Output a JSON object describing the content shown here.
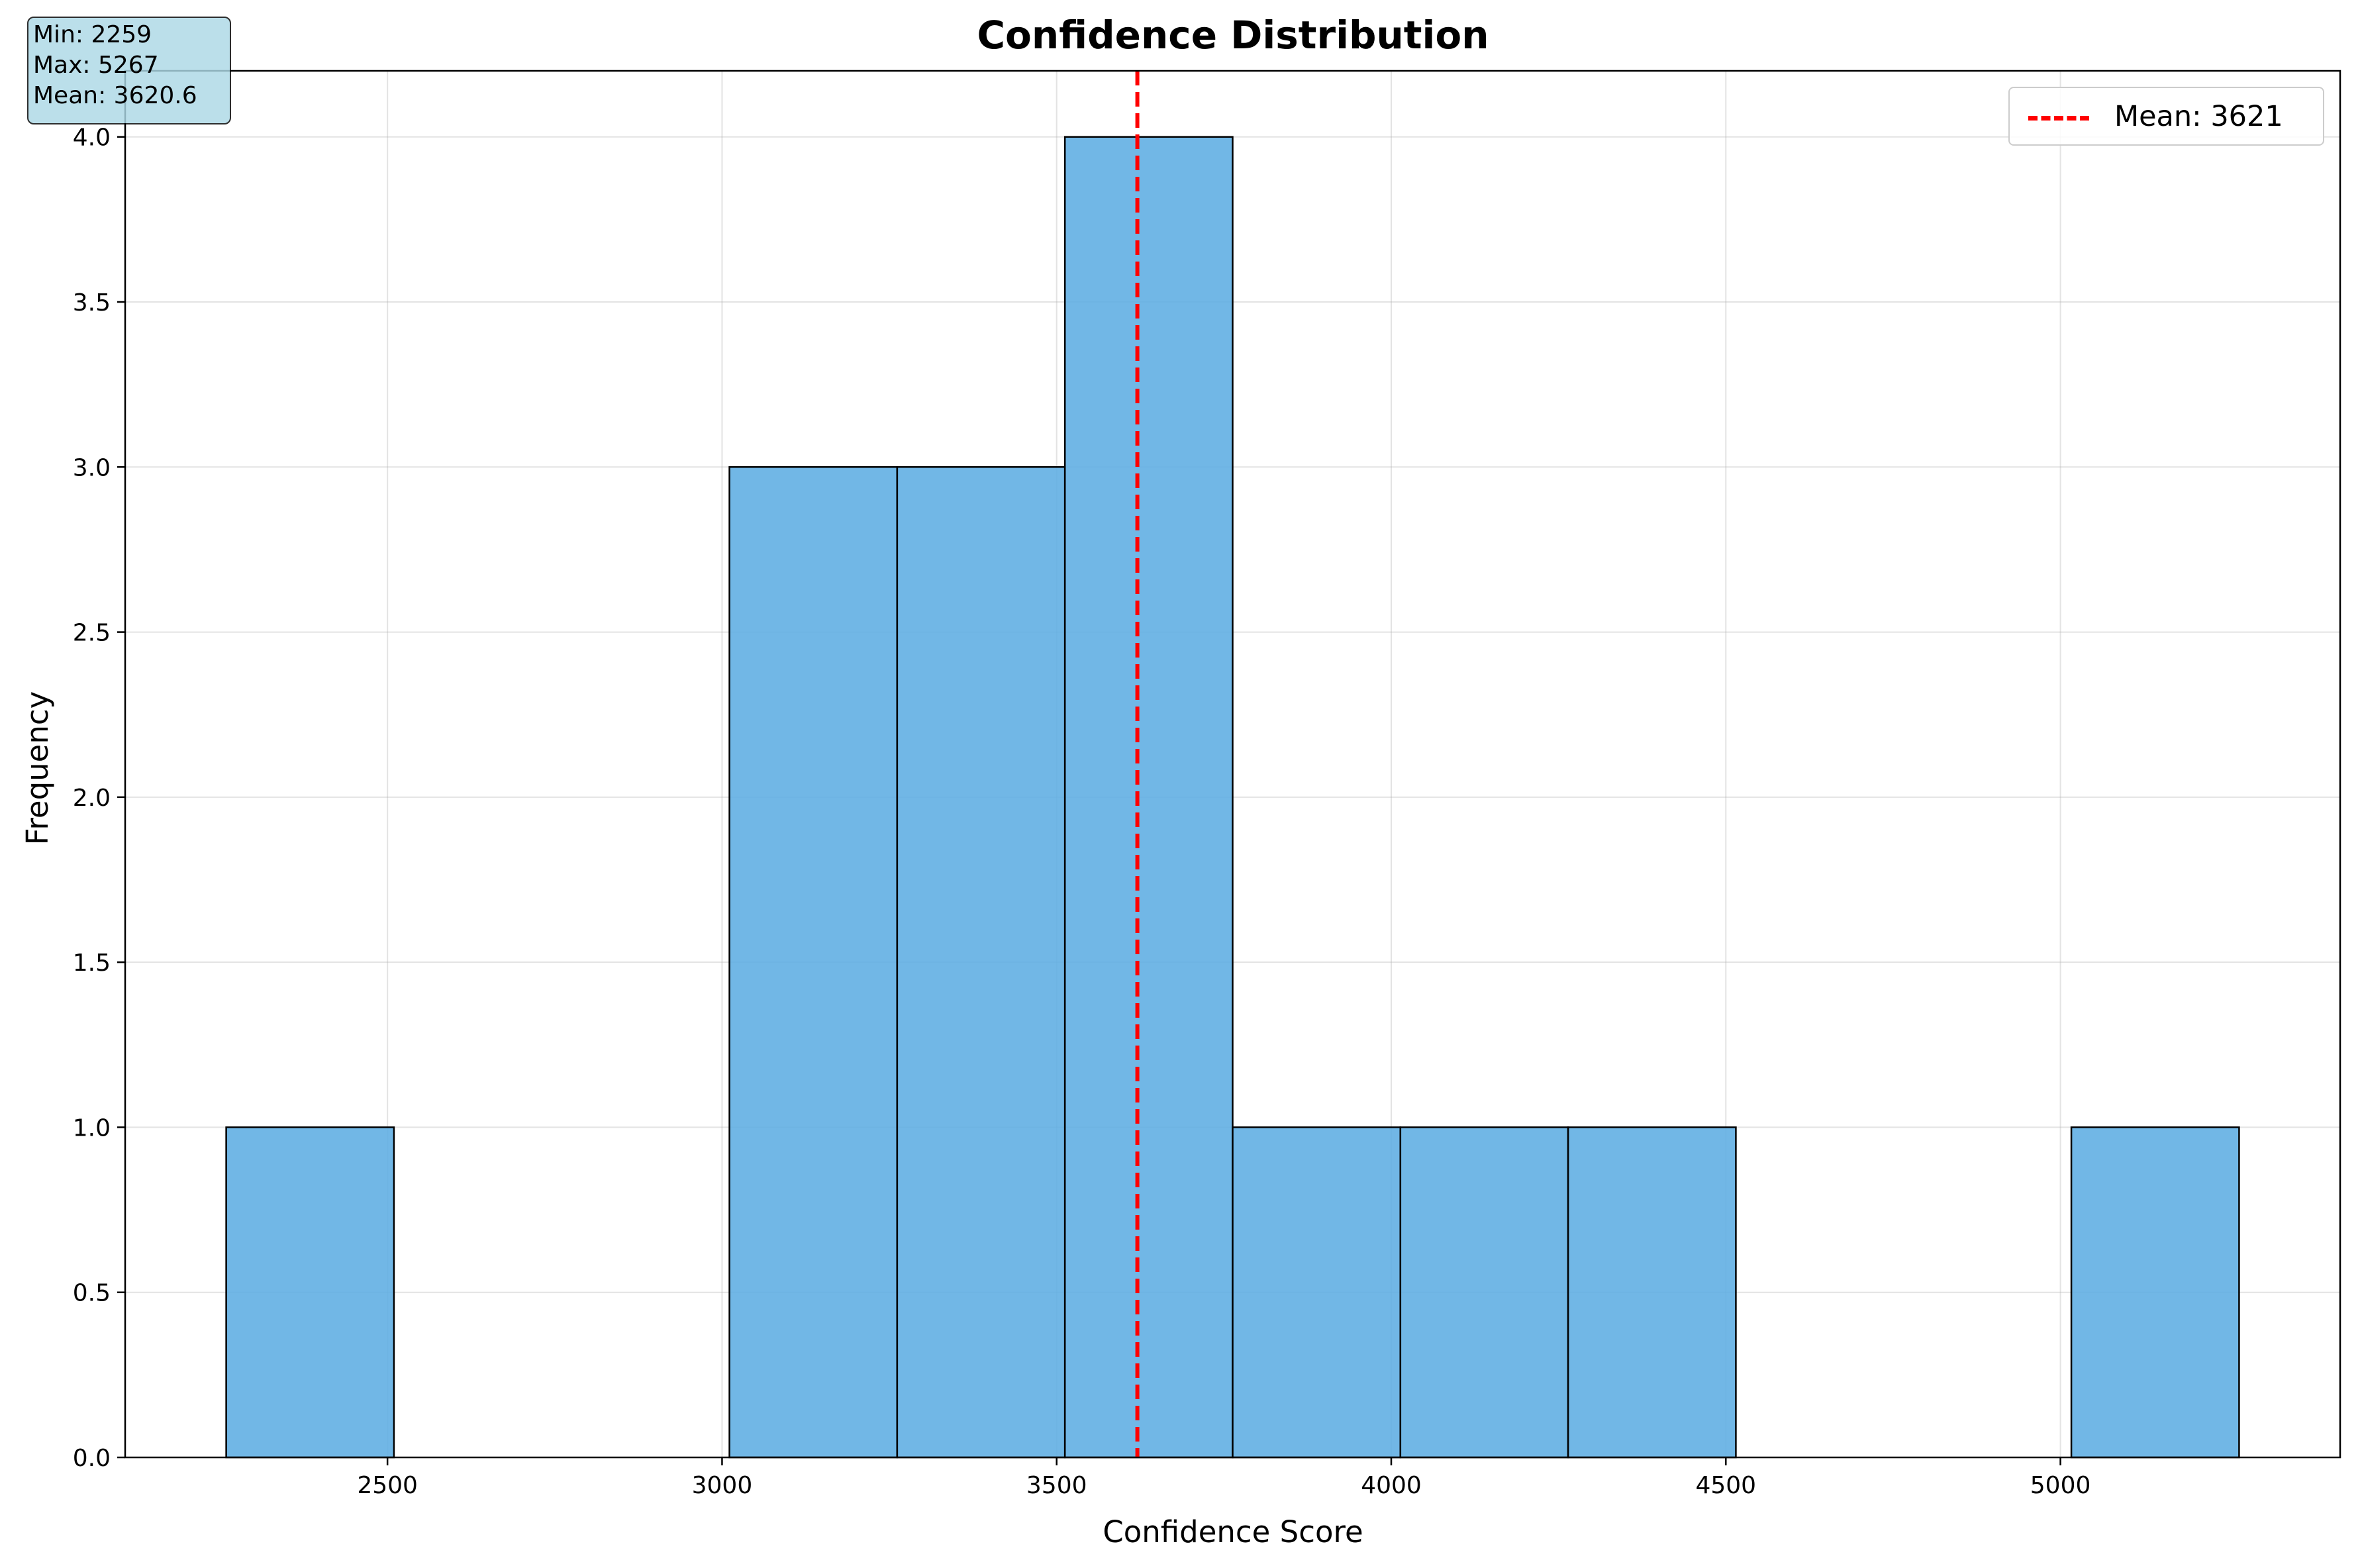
{
  "chart_data": {
    "type": "bar",
    "title": "Confidence Distribution",
    "xlabel": "Confidence Score",
    "ylabel": "Frequency",
    "xlim": [
      2108,
      5418
    ],
    "ylim": [
      0,
      4.2
    ],
    "grid": true,
    "bin_edges": [
      2259,
      2509.67,
      2760.33,
      3011,
      3261.67,
      3512.33,
      3763,
      4013.67,
      4264.33,
      4515,
      4765.67,
      5016.33,
      5267
    ],
    "counts": [
      1,
      0,
      0,
      3,
      3,
      4,
      1,
      1,
      1,
      0,
      0,
      1
    ],
    "bar_color": "#5dade2",
    "bar_edge_color": "#000000",
    "x_ticks": [
      2500,
      3000,
      3500,
      4000,
      4500,
      5000
    ],
    "x_tick_labels": [
      "2500",
      "3000",
      "3500",
      "4000",
      "4500",
      "5000"
    ],
    "y_ticks": [
      0,
      0.5,
      1,
      1.5,
      2,
      2.5,
      3,
      3.5,
      4
    ],
    "y_tick_labels": [
      "0.0",
      "0.5",
      "1.0",
      "1.5",
      "2.0",
      "2.5",
      "3.0",
      "3.5",
      "4.0"
    ],
    "mean_line": {
      "value": 3620.6,
      "color": "#ff0000",
      "style": "dashed"
    },
    "legend": {
      "position": "top-right",
      "entries": [
        "Mean: 3621"
      ]
    },
    "stats_box": {
      "position": "top-left",
      "lines": [
        "Min: 2259",
        "Max: 5267",
        "Mean: 3620.6"
      ]
    }
  }
}
